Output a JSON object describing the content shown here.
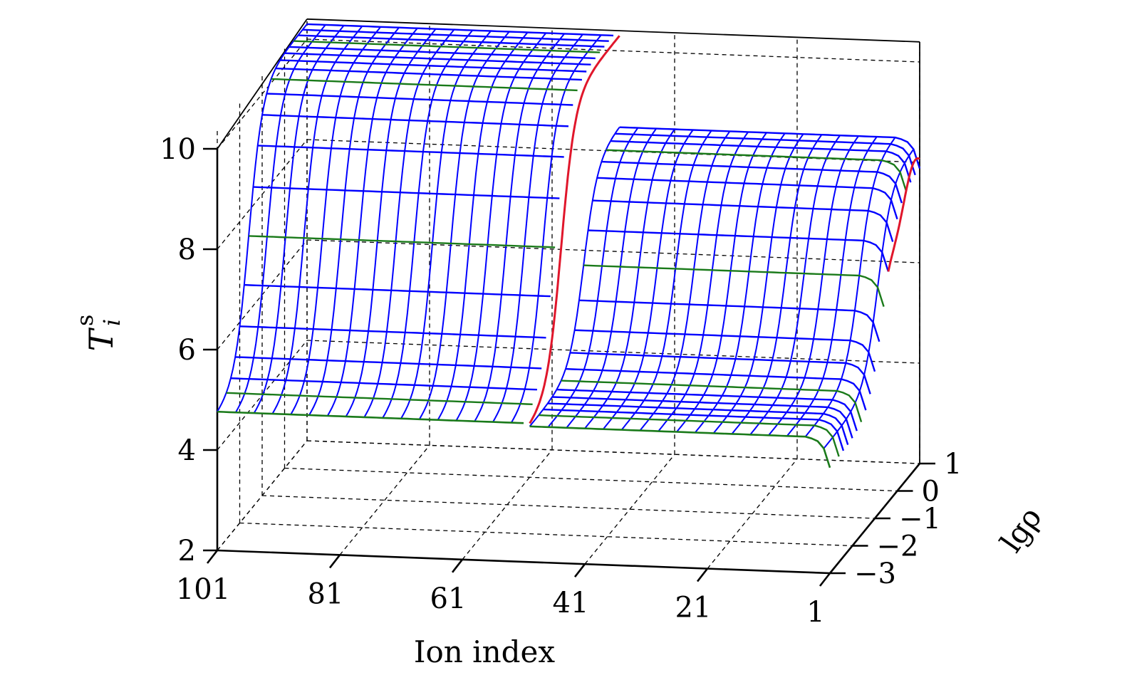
{
  "chart_data": {
    "type": "surface3d",
    "title": "",
    "xlabel": "Ion index",
    "ylabel_main": "T",
    "ylabel_sub": "i",
    "ylabel_sup": "s",
    "depth_label": "lgρ",
    "x_ticks": [
      "101",
      "81",
      "61",
      "41",
      "21",
      "1"
    ],
    "depth_ticks": [
      "−3",
      "−2",
      "−1",
      "0",
      "1"
    ],
    "z_ticks": [
      "2",
      "4",
      "6",
      "8",
      "10"
    ],
    "x_range": [
      101,
      1
    ],
    "depth_range": [
      -3,
      1
    ],
    "z_range": [
      2,
      10
    ],
    "grid": true,
    "colors": {
      "mesh": "#0000ff",
      "highlight_lines": "#1a7a1a",
      "edge_curve": "#e0162b",
      "axes": "#000000",
      "grid": "#000000"
    },
    "surface": {
      "description_free": true,
      "low_level": 4.7,
      "left_block_high": 10.3,
      "right_block_high": 8.5,
      "left_block_ion_range": [
        101,
        51
      ],
      "right_block_ion_range": [
        50,
        1
      ],
      "rise_lg_rho_left": -1.6,
      "rise_lg_rho_right": -0.6
    }
  }
}
